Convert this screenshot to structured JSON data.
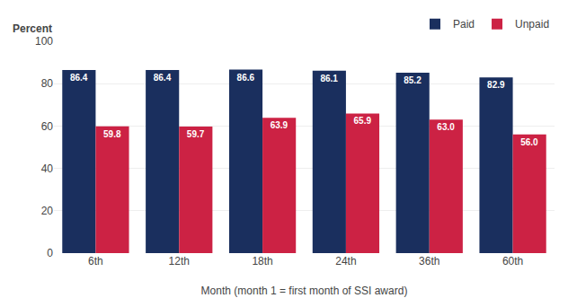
{
  "chart_data": {
    "type": "bar",
    "categories": [
      "6th",
      "12th",
      "18th",
      "24th",
      "36th",
      "60th"
    ],
    "series": [
      {
        "name": "Paid",
        "color": "#1a2f5e",
        "values": [
          86.4,
          86.4,
          86.6,
          86.1,
          85.2,
          82.9
        ],
        "value_labels": [
          "86.4",
          "86.4",
          "86.6",
          "86.1",
          "85.2",
          "82.9"
        ]
      },
      {
        "name": "Unpaid",
        "color": "#cc2244",
        "values": [
          59.8,
          59.7,
          63.9,
          65.9,
          63.0,
          56.0
        ],
        "value_labels": [
          "59.8",
          "59.7",
          "63.9",
          "65.9",
          "63.0",
          "56.0"
        ]
      }
    ],
    "xlabel": "Month (month 1 = first month of SSI award)",
    "ylabel": "Percent",
    "ylim": [
      0,
      100
    ],
    "yticks": [
      0,
      20,
      40,
      60,
      80,
      100
    ],
    "grid": true,
    "legend": "upper right",
    "data_labels": true
  }
}
